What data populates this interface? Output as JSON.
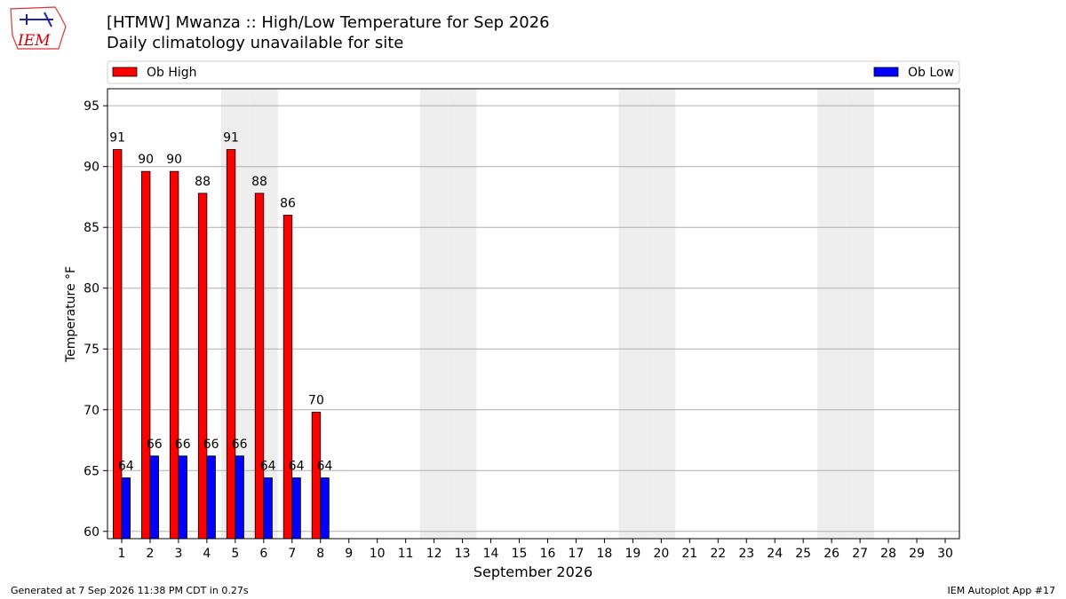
{
  "chart_data": {
    "type": "bar",
    "title": "[HTMW] Mwanza :: High/Low Temperature for Sep 2026",
    "subtitle": "Daily climatology unavailable for site",
    "y_label": "Temperature °F",
    "x_label": "September 2026",
    "categories": [
      "1",
      "2",
      "3",
      "4",
      "5",
      "6",
      "7",
      "8",
      "9",
      "10",
      "11",
      "12",
      "13",
      "14",
      "15",
      "16",
      "17",
      "18",
      "19",
      "20",
      "21",
      "22",
      "23",
      "24",
      "25",
      "26",
      "27",
      "28",
      "29",
      "30"
    ],
    "series": [
      {
        "name": "Ob High",
        "color": "#ff0000",
        "values": [
          91.4,
          89.6,
          89.6,
          87.8,
          91.4,
          87.8,
          86.0,
          69.8,
          null,
          null,
          null,
          null,
          null,
          null,
          null,
          null,
          null,
          null,
          null,
          null,
          null,
          null,
          null,
          null,
          null,
          null,
          null,
          null,
          null,
          null
        ],
        "value_labels": [
          "91",
          "90",
          "90",
          "88",
          "91",
          "88",
          "86",
          "70"
        ]
      },
      {
        "name": "Ob Low",
        "color": "#0000ff",
        "values": [
          64.4,
          66.2,
          66.2,
          66.2,
          66.2,
          64.4,
          64.4,
          64.4,
          null,
          null,
          null,
          null,
          null,
          null,
          null,
          null,
          null,
          null,
          null,
          null,
          null,
          null,
          null,
          null,
          null,
          null,
          null,
          null,
          null,
          null
        ],
        "value_labels": [
          "64",
          "66",
          "66",
          "66",
          "66",
          "64",
          "64",
          "64"
        ]
      }
    ],
    "shaded_categories": [
      "5",
      "6",
      "12",
      "13",
      "19",
      "20",
      "26",
      "27"
    ],
    "ylim": [
      59.4,
      96.4
    ],
    "yticks": [
      60,
      65,
      70,
      75,
      80,
      85,
      90,
      95
    ],
    "grid": true,
    "legend": "top"
  },
  "logo_text": "IEM",
  "footer": {
    "left": "Generated at 7 Sep 2026 11:38 PM CDT in 0.27s",
    "right": "IEM Autoplot App #17"
  }
}
